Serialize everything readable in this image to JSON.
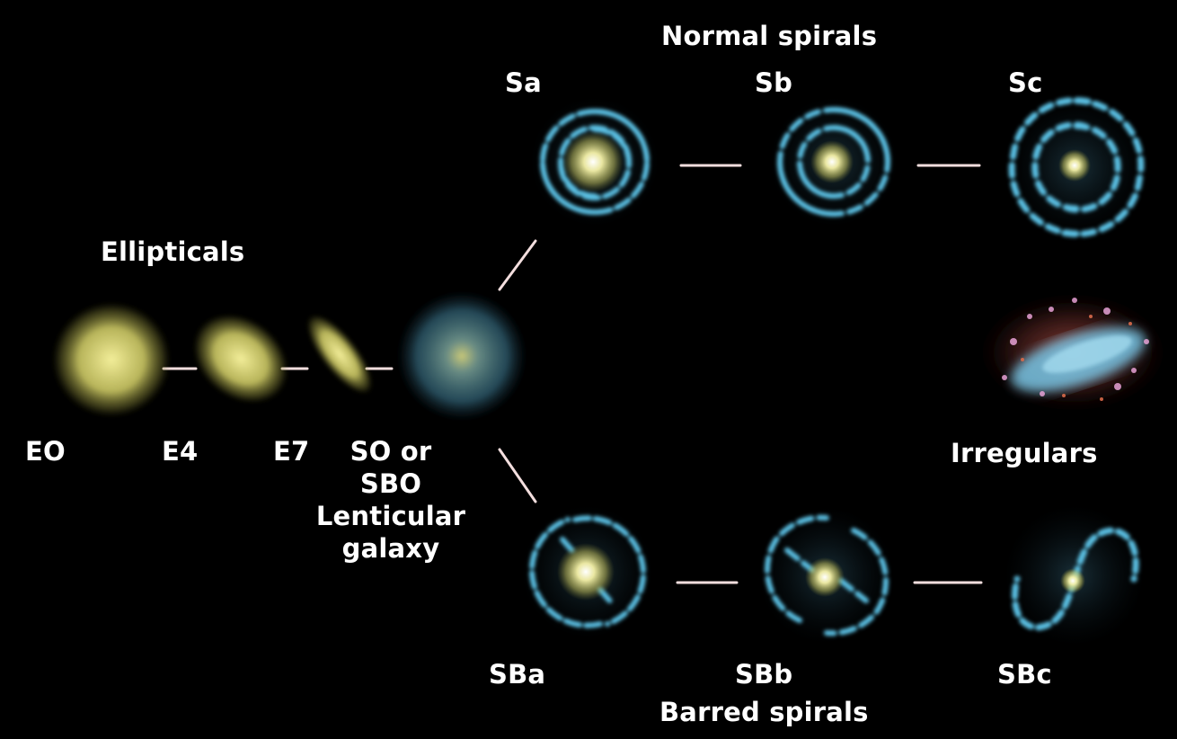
{
  "groups": {
    "ellipticals": "Ellipticals",
    "normal_spirals": "Normal spirals",
    "barred_spirals": "Barred spirals",
    "irregulars": "Irregulars"
  },
  "types": {
    "e0": "EO",
    "e4": "E4",
    "e7": "E7",
    "s0_line1": "SO or",
    "s0_line2": "SBO",
    "s0_line3": "Lenticular",
    "s0_line4": "galaxy",
    "sa": "Sa",
    "sb": "Sb",
    "sc": "Sc",
    "sba": "SBa",
    "sbb": "SBb",
    "sbc": "SBc"
  },
  "colors": {
    "background": "#000000",
    "elliptical_yellow": "#e4df7a",
    "spiral_arm_blue": "#5cc2e6",
    "lenticular_blue": "#4f93a8",
    "connector": "#f3dede",
    "irregular_red": "#c9603c",
    "irregular_pink": "#e8a2d6"
  }
}
